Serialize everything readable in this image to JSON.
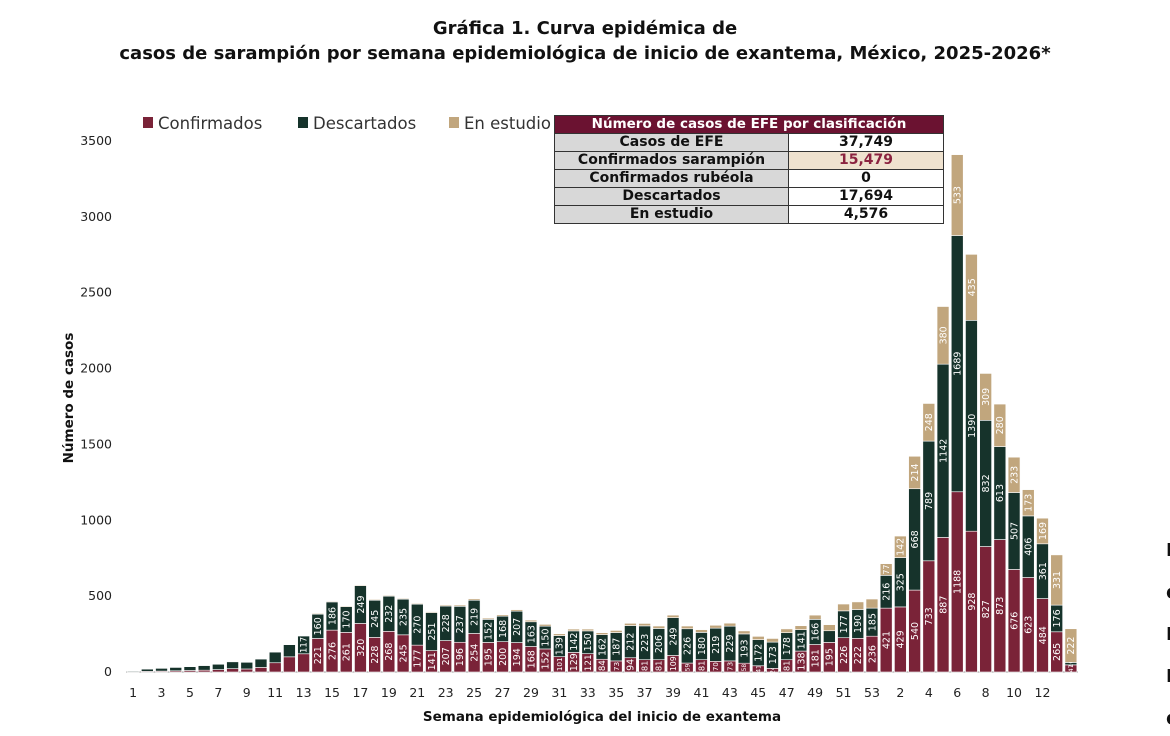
{
  "colors": {
    "confirmados": "#7a2338",
    "descartados": "#16332b",
    "en_estudio": "#c1a67d",
    "table_header": "#6b1231",
    "highlight_bg": "#efe2cf",
    "highlight_text": "#8b2340"
  },
  "summary_table": {
    "header": "Número de casos de EFE por clasificación",
    "rows": [
      {
        "label": "Casos de EFE",
        "value": "37,749",
        "highlight": false
      },
      {
        "label": "Confirmados sarampión",
        "value": "15,479",
        "highlight": true
      },
      {
        "label": "Confirmados rubéola",
        "value": "0",
        "highlight": false
      },
      {
        "label": "Descartados",
        "value": "17,694",
        "highlight": false
      },
      {
        "label": "En estudio",
        "value": "4,576",
        "highlight": false
      }
    ]
  },
  "right_fragments": [
    "I",
    "d",
    "I",
    "I",
    "d"
  ],
  "chart_data": {
    "type": "bar",
    "stacked": true,
    "title": "Gráfica 1. Curva epidémica de",
    "subtitle": "casos de sarampión por semana epidemiológica de inicio de exantema, México, 2025-2026*",
    "xlabel": "Semana epidemiológica del inicio de exantema",
    "ylabel": "Número de casos",
    "ylim": [
      0,
      3500
    ],
    "yticks": [
      "0",
      "500",
      "1000",
      "1500",
      "2000",
      "2500",
      "3000",
      "3500"
    ],
    "legend_position": "top-left",
    "categories": [
      "1",
      "2",
      "3",
      "4",
      "5",
      "6",
      "7",
      "8",
      "9",
      "10",
      "11",
      "12",
      "13",
      "14",
      "15",
      "16",
      "17",
      "18",
      "19",
      "20",
      "21",
      "22",
      "23",
      "24",
      "25",
      "26",
      "27",
      "28",
      "29",
      "30",
      "31",
      "32",
      "33",
      "34",
      "35",
      "36",
      "37",
      "38",
      "39",
      "40",
      "41",
      "42",
      "43",
      "44",
      "45",
      "46",
      "47",
      "48",
      "49",
      "50",
      "51",
      "52",
      "53",
      "1",
      "2",
      "3",
      "4",
      "5",
      "6",
      "7",
      "8",
      "9",
      "10",
      "11",
      "12",
      "13",
      "14"
    ],
    "xtick_labels": [
      "1",
      "",
      "3",
      "",
      "5",
      "",
      "7",
      "",
      "9",
      "",
      "11",
      "",
      "13",
      "",
      "15",
      "",
      "17",
      "",
      "19",
      "",
      "21",
      "",
      "23",
      "",
      "25",
      "",
      "27",
      "",
      "29",
      "",
      "31",
      "",
      "33",
      "",
      "35",
      "",
      "37",
      "",
      "39",
      "",
      "41",
      "",
      "43",
      "",
      "45",
      "",
      "47",
      "",
      "49",
      "",
      "51",
      "",
      "53",
      "",
      "2",
      "",
      "4",
      "",
      "6",
      "",
      "8",
      "",
      "10",
      "",
      "12",
      "",
      ""
    ],
    "series": [
      {
        "name": "Confirmados",
        "values": [
          1,
          4,
          6,
          8,
          10,
          12,
          16,
          22,
          20,
          30,
          61,
          100,
          120,
          221,
          276,
          261,
          320,
          228,
          268,
          245,
          177,
          141,
          207,
          196,
          254,
          195,
          200,
          194,
          168,
          152,
          101,
          129,
          121,
          84,
          73,
          94,
          81,
          81,
          109,
          59,
          81,
          70,
          73,
          58,
          41,
          24,
          81,
          138,
          181,
          195,
          226,
          222,
          236,
          421,
          429,
          540,
          733,
          887,
          1188,
          928,
          827,
          873,
          676,
          623,
          484,
          265,
          47
        ],
        "labels": [
          "",
          "",
          "",
          "",
          "",
          "",
          "",
          "",
          "",
          "",
          "",
          "",
          "",
          "221",
          "276",
          "261",
          "320",
          "228",
          "268",
          "245",
          "177",
          "141",
          "207",
          "196",
          "254",
          "195",
          "200",
          "194",
          "168",
          "152",
          "101",
          "129",
          "121",
          "84",
          "73",
          "94",
          "81",
          "81",
          "109",
          "59",
          "81",
          "70",
          "73",
          "58",
          "41",
          "24",
          "81",
          "138",
          "181",
          "195",
          "226",
          "222",
          "236",
          "421",
          "429",
          "540",
          "733",
          "887",
          "1188",
          "928",
          "827",
          "873",
          "676",
          "623",
          "484",
          "265",
          "47"
        ]
      },
      {
        "name": "Descartados",
        "values": [
          2,
          15,
          18,
          22,
          25,
          30,
          35,
          45,
          44,
          55,
          70,
          80,
          117,
          160,
          186,
          170,
          249,
          245,
          232,
          235,
          270,
          251,
          228,
          237,
          219,
          152,
          168,
          207,
          163,
          150,
          139,
          142,
          150,
          162,
          187,
          212,
          223,
          206,
          249,
          226,
          180,
          219,
          229,
          193,
          172,
          173,
          178,
          141,
          166,
          77,
          177,
          190,
          185,
          216,
          325,
          668,
          789,
          1142,
          1689,
          1390,
          832,
          613,
          507,
          406,
          361,
          176,
          16
        ],
        "labels": [
          "",
          "",
          "",
          "",
          "",
          "",
          "",
          "",
          "",
          "",
          "",
          "",
          "117",
          "160",
          "186",
          "170",
          "249",
          "245",
          "232",
          "235",
          "270",
          "251",
          "228",
          "237",
          "219",
          "152",
          "168",
          "207",
          "163",
          "150",
          "139",
          "142",
          "150",
          "162",
          "187",
          "212",
          "223",
          "206",
          "249",
          "226",
          "180",
          "219",
          "229",
          "193",
          "172",
          "173",
          "178",
          "141",
          "166",
          "",
          "177",
          "190",
          "185",
          "216",
          "325",
          "668",
          "789",
          "1142",
          "1689",
          "1390",
          "832",
          "613",
          "507",
          "406",
          "361",
          "176",
          "16"
        ]
      },
      {
        "name": "En estudio",
        "values": [
          0,
          0,
          0,
          0,
          0,
          0,
          0,
          0,
          0,
          0,
          0,
          0,
          0,
          2,
          2,
          2,
          3,
          3,
          4,
          5,
          5,
          6,
          7,
          8,
          9,
          8,
          9,
          10,
          11,
          12,
          12,
          12,
          12,
          13,
          14,
          15,
          16,
          16,
          17,
          18,
          18,
          19,
          20,
          20,
          22,
          24,
          25,
          26,
          28,
          40,
          45,
          50,
          60,
          77,
          142,
          214,
          248,
          380,
          533,
          435,
          309,
          280,
          233,
          173,
          169,
          331,
          222
        ],
        "labels": [
          "",
          "",
          "",
          "",
          "",
          "",
          "",
          "",
          "",
          "",
          "",
          "",
          "",
          "",
          "",
          "",
          "",
          "",
          "",
          "",
          "",
          "",
          "",
          "",
          "",
          "",
          "",
          "",
          "",
          "",
          "",
          "",
          "",
          "",
          "",
          "",
          "",
          "",
          "",
          "",
          "",
          "",
          "",
          "",
          "",
          "",
          "",
          "",
          "",
          "",
          "",
          "",
          "",
          "77",
          "142",
          "214",
          "248",
          "380",
          "533",
          "435",
          "309",
          "280",
          "233",
          "173",
          "169",
          "331",
          "222"
        ]
      }
    ]
  }
}
